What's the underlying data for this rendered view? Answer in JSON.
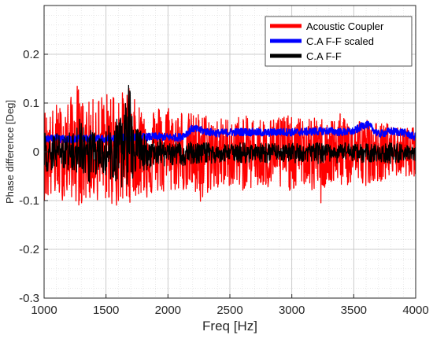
{
  "chart_data": {
    "type": "line",
    "xlabel": "Freq [Hz]",
    "ylabel": "Phase difference [Deg]",
    "xlim": [
      1000,
      4000
    ],
    "ylim": [
      -0.3,
      0.3
    ],
    "x_ticks": [
      1000,
      1500,
      2000,
      2500,
      3000,
      3500,
      4000
    ],
    "x_tick_labels": [
      "1000",
      "1500",
      "2000",
      "2500",
      "3000",
      "3500",
      "4000"
    ],
    "y_ticks": [
      -0.3,
      -0.2,
      -0.1,
      0,
      0.1,
      0.2
    ],
    "y_tick_labels": [
      "-0.3",
      "-0.2",
      "-0.1",
      "0",
      "0.1",
      "0.2"
    ],
    "grid": true,
    "minor_grid": true,
    "legend_position": "top-right",
    "series": [
      {
        "name": "Acoustic Coupler",
        "color": "#ff0000",
        "x": [
          1000,
          1050,
          1100,
          1150,
          1200,
          1250,
          1260,
          1300,
          1350,
          1400,
          1450,
          1500,
          1550,
          1600,
          1650,
          1680,
          1700,
          1750,
          1800,
          1850,
          1900,
          1950,
          2000,
          2050,
          2100,
          2150,
          2200,
          2250,
          2260,
          2300,
          2350,
          2400,
          2450,
          2500,
          2550,
          2600,
          2650,
          2700,
          2750,
          2800,
          2850,
          2900,
          2950,
          3000,
          3050,
          3100,
          3150,
          3200,
          3230,
          3250,
          3300,
          3350,
          3400,
          3450,
          3500,
          3550,
          3600,
          3650,
          3700,
          3750,
          3800,
          3850,
          3900,
          3950,
          4000
        ],
        "upper": [
          0.09,
          0.08,
          0.1,
          0.09,
          0.11,
          0.12,
          0.15,
          0.11,
          0.1,
          0.11,
          0.12,
          0.12,
          0.13,
          0.13,
          0.12,
          0.15,
          0.12,
          0.1,
          0.1,
          0.1,
          0.09,
          0.1,
          0.1,
          0.08,
          0.09,
          0.08,
          0.08,
          0.08,
          0.08,
          0.08,
          0.07,
          0.07,
          0.07,
          0.07,
          0.07,
          0.08,
          0.07,
          0.07,
          0.07,
          0.07,
          0.07,
          0.08,
          0.08,
          0.07,
          0.07,
          0.07,
          0.07,
          0.07,
          0.07,
          0.07,
          0.07,
          0.07,
          0.08,
          0.07,
          0.07,
          0.07,
          0.07,
          0.06,
          0.06,
          0.06,
          0.06,
          0.05,
          0.05,
          0.05,
          0.05
        ],
        "lower": [
          -0.1,
          -0.1,
          -0.09,
          -0.1,
          -0.09,
          -0.1,
          -0.11,
          -0.11,
          -0.1,
          -0.1,
          -0.1,
          -0.1,
          -0.11,
          -0.12,
          -0.1,
          -0.11,
          -0.1,
          -0.09,
          -0.09,
          -0.1,
          -0.08,
          -0.09,
          -0.09,
          -0.08,
          -0.08,
          -0.08,
          -0.09,
          -0.1,
          -0.13,
          -0.09,
          -0.08,
          -0.08,
          -0.08,
          -0.07,
          -0.07,
          -0.08,
          -0.08,
          -0.07,
          -0.08,
          -0.08,
          -0.07,
          -0.08,
          -0.08,
          -0.08,
          -0.07,
          -0.07,
          -0.08,
          -0.09,
          -0.12,
          -0.08,
          -0.07,
          -0.07,
          -0.07,
          -0.07,
          -0.07,
          -0.06,
          -0.07,
          -0.06,
          -0.06,
          -0.06,
          -0.05,
          -0.05,
          -0.05,
          -0.05,
          -0.05
        ]
      },
      {
        "name": "C.A F-F scaled",
        "color": "#0000ff",
        "x": [
          1000,
          1100,
          1200,
          1300,
          1400,
          1500,
          1600,
          1700,
          1800,
          1900,
          2000,
          2100,
          2150,
          2200,
          2300,
          2400,
          2500,
          2600,
          2700,
          2800,
          2900,
          3000,
          3100,
          3200,
          3300,
          3400,
          3500,
          3550,
          3600,
          3650,
          3700,
          3800,
          3900,
          4000
        ],
        "values": [
          0.025,
          0.027,
          0.025,
          0.028,
          0.027,
          0.026,
          0.028,
          0.03,
          0.03,
          0.031,
          0.03,
          0.03,
          0.038,
          0.048,
          0.042,
          0.038,
          0.04,
          0.041,
          0.04,
          0.039,
          0.041,
          0.04,
          0.041,
          0.042,
          0.043,
          0.04,
          0.042,
          0.05,
          0.057,
          0.048,
          0.036,
          0.042,
          0.04,
          0.03
        ],
        "band": 0.008
      },
      {
        "name": "C.A F-F",
        "color": "#000000",
        "x": [
          1000,
          1050,
          1100,
          1150,
          1200,
          1250,
          1280,
          1300,
          1350,
          1400,
          1450,
          1500,
          1550,
          1600,
          1650,
          1690,
          1700,
          1750,
          1800,
          1850,
          1900,
          1950,
          2000,
          2100,
          2200,
          2300,
          2400,
          2500,
          2600,
          2700,
          2800,
          2900,
          3000,
          3100,
          3200,
          3300,
          3400,
          3500,
          3600,
          3700,
          3800,
          3900,
          4000
        ],
        "upper": [
          0.04,
          0.035,
          0.04,
          0.03,
          0.04,
          0.05,
          0.085,
          0.06,
          0.05,
          0.04,
          0.04,
          0.05,
          0.06,
          0.07,
          0.09,
          0.17,
          0.09,
          0.05,
          0.04,
          0.03,
          0.03,
          0.025,
          0.02,
          0.02,
          0.02,
          0.02,
          0.015,
          0.015,
          0.02,
          0.015,
          0.02,
          0.015,
          0.02,
          0.015,
          0.02,
          0.015,
          0.02,
          0.015,
          0.02,
          0.015,
          0.02,
          0.015,
          0.01
        ],
        "lower": [
          -0.05,
          -0.04,
          -0.04,
          -0.035,
          -0.04,
          -0.05,
          -0.08,
          -0.06,
          -0.07,
          -0.05,
          -0.04,
          -0.05,
          -0.06,
          -0.07,
          -0.08,
          -0.08,
          -0.06,
          -0.04,
          -0.04,
          -0.035,
          -0.03,
          -0.03,
          -0.03,
          -0.03,
          -0.025,
          -0.025,
          -0.025,
          -0.02,
          -0.025,
          -0.02,
          -0.025,
          -0.02,
          -0.025,
          -0.02,
          -0.025,
          -0.02,
          -0.025,
          -0.02,
          -0.025,
          -0.02,
          -0.025,
          -0.02,
          -0.02
        ]
      }
    ]
  }
}
